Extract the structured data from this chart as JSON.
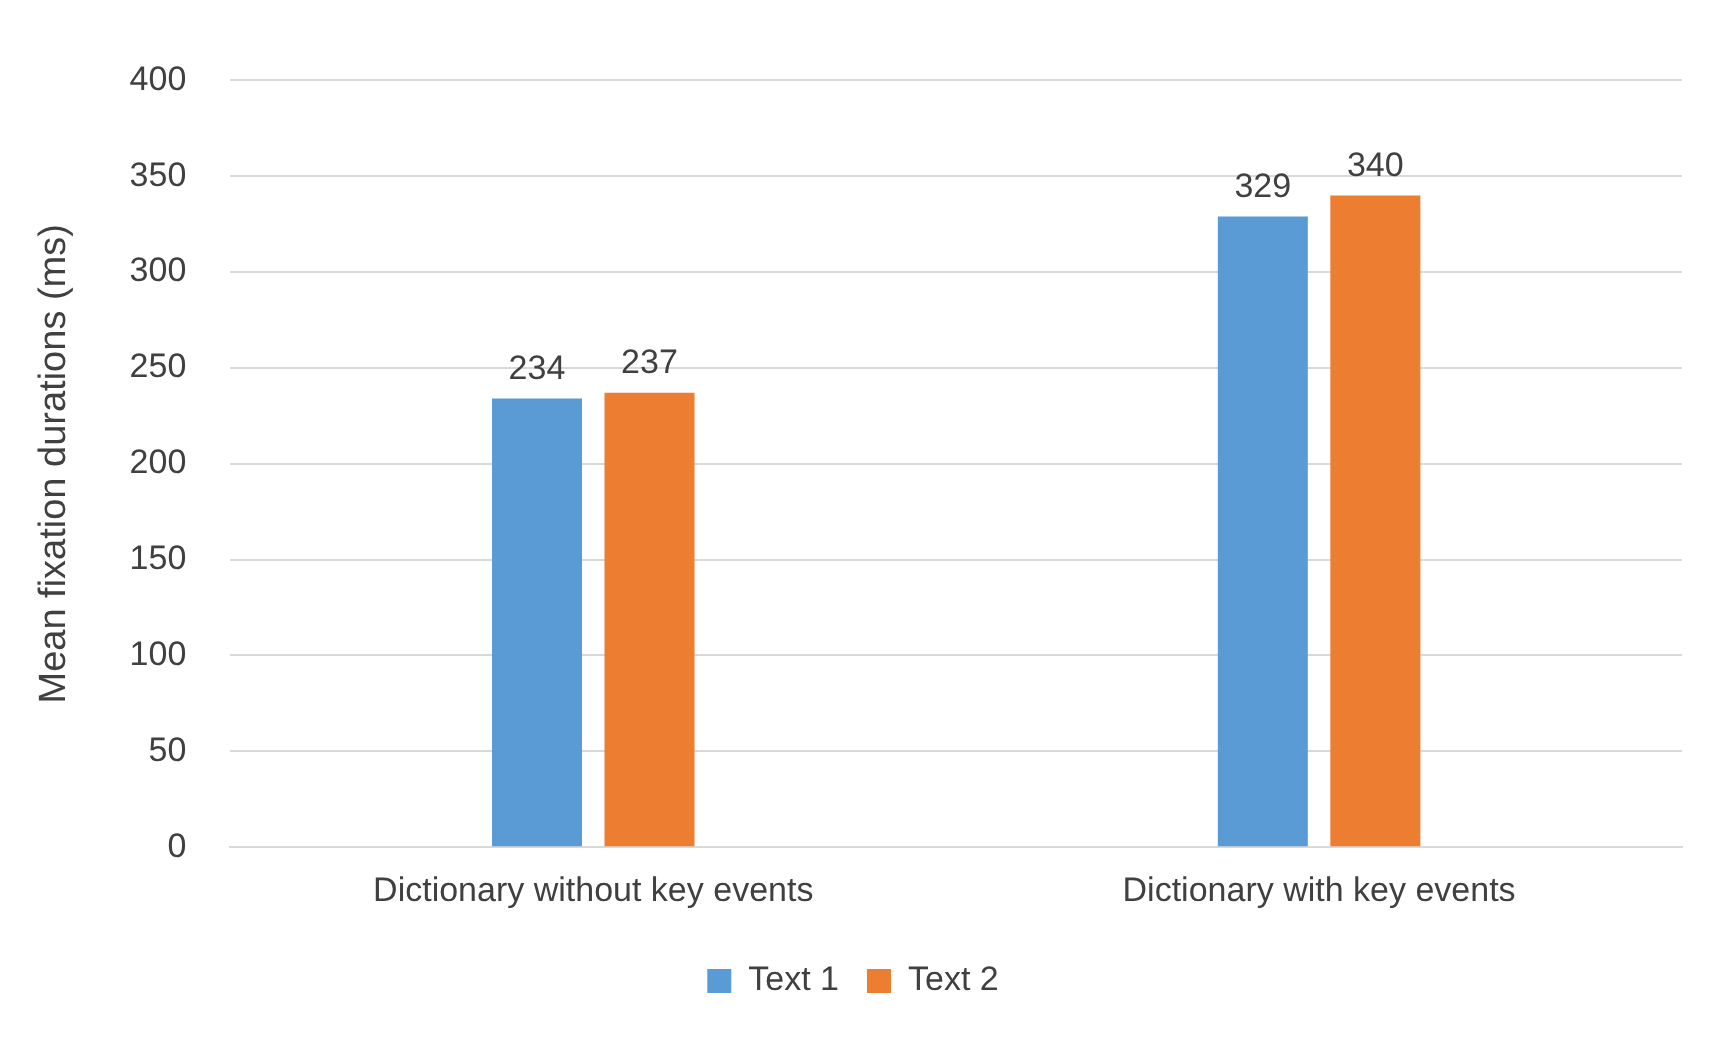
{
  "chart_data": {
    "type": "bar",
    "ylabel": "Mean fixation durations (ms)",
    "categories": [
      "Dictionary without key events",
      "Dictionary with key events"
    ],
    "series": [
      {
        "name": "Text 1",
        "color": "#5b9bd5",
        "values": [
          234,
          329
        ]
      },
      {
        "name": "Text 2",
        "color": "#ed7d31",
        "values": [
          237,
          340
        ]
      }
    ],
    "ylim": [
      0,
      400
    ],
    "yticks": [
      0,
      50,
      100,
      150,
      200,
      250,
      300,
      350,
      400
    ],
    "grid": "y",
    "legend": "bottom",
    "data_labels": true
  }
}
